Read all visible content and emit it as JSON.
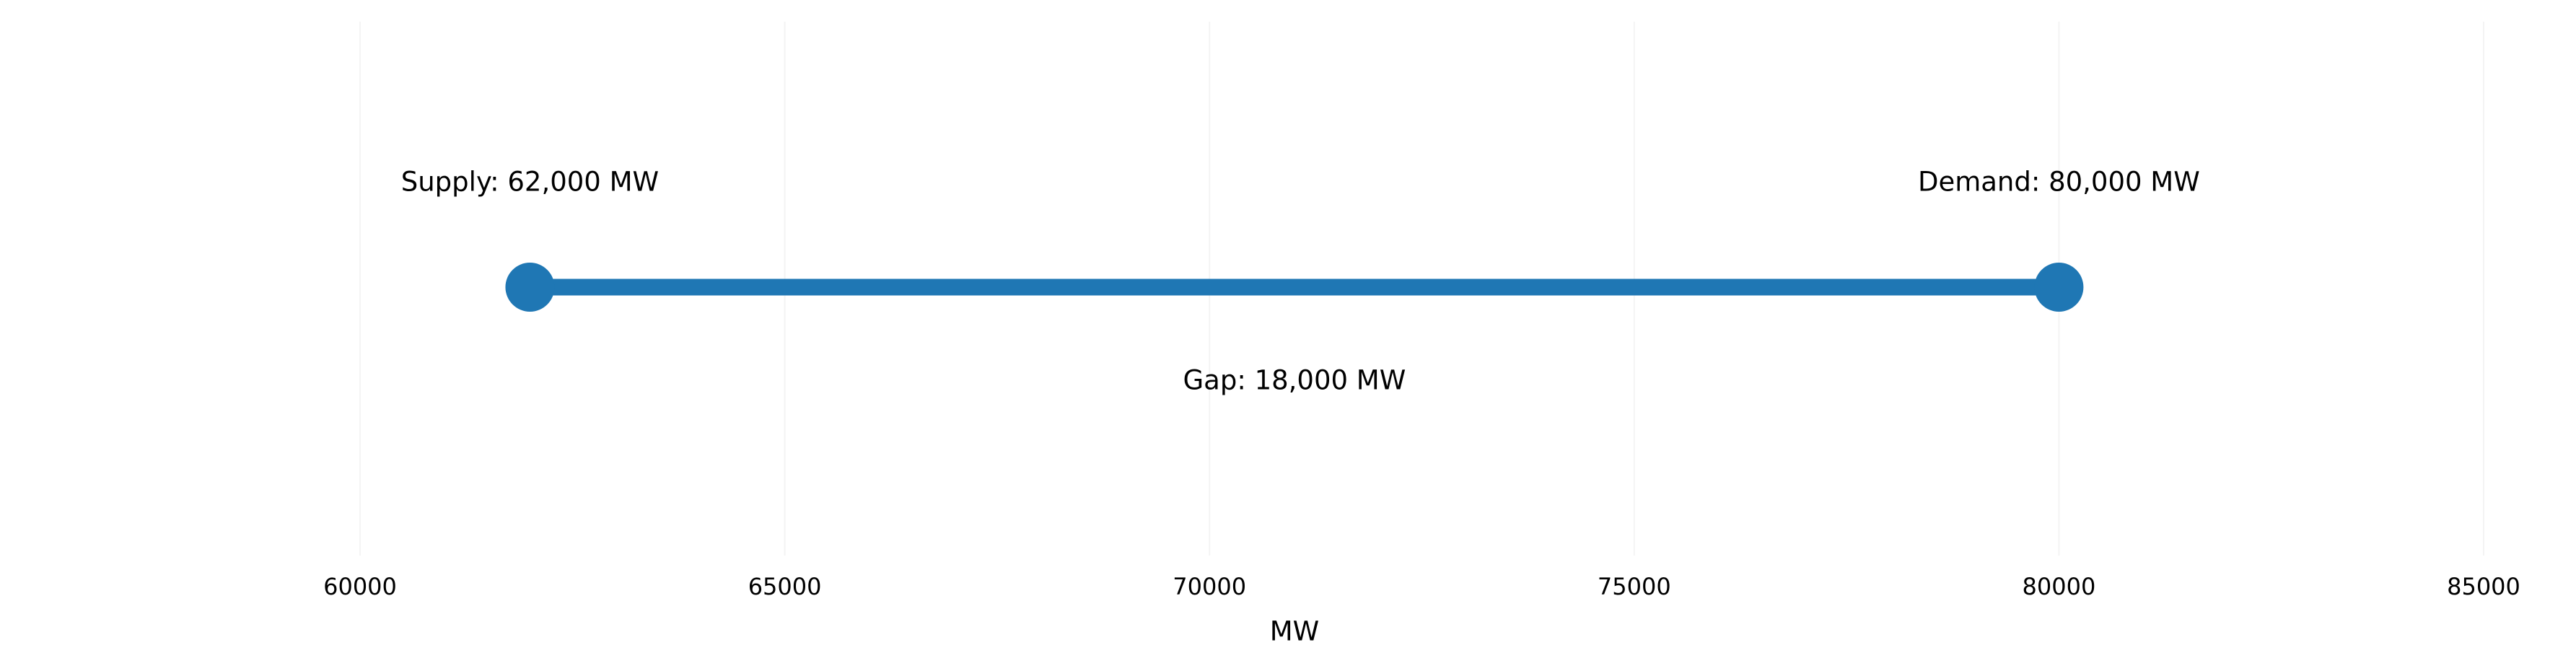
{
  "chart_data": {
    "type": "dumbbell",
    "series": [
      {
        "color": "#1f77b4",
        "values": [
          62000,
          80000
        ],
        "value_labels": [
          "Supply: 62,000 MW",
          "Demand: 80,000 MW"
        ]
      }
    ],
    "annotations": [
      {
        "value": 18000,
        "label": "Gap: 18,000 MW"
      }
    ],
    "xlabel": "MW",
    "xlim": [
      60000,
      85000
    ],
    "xticks": [
      60000,
      65000,
      70000,
      75000,
      80000,
      85000
    ],
    "grid": true
  }
}
